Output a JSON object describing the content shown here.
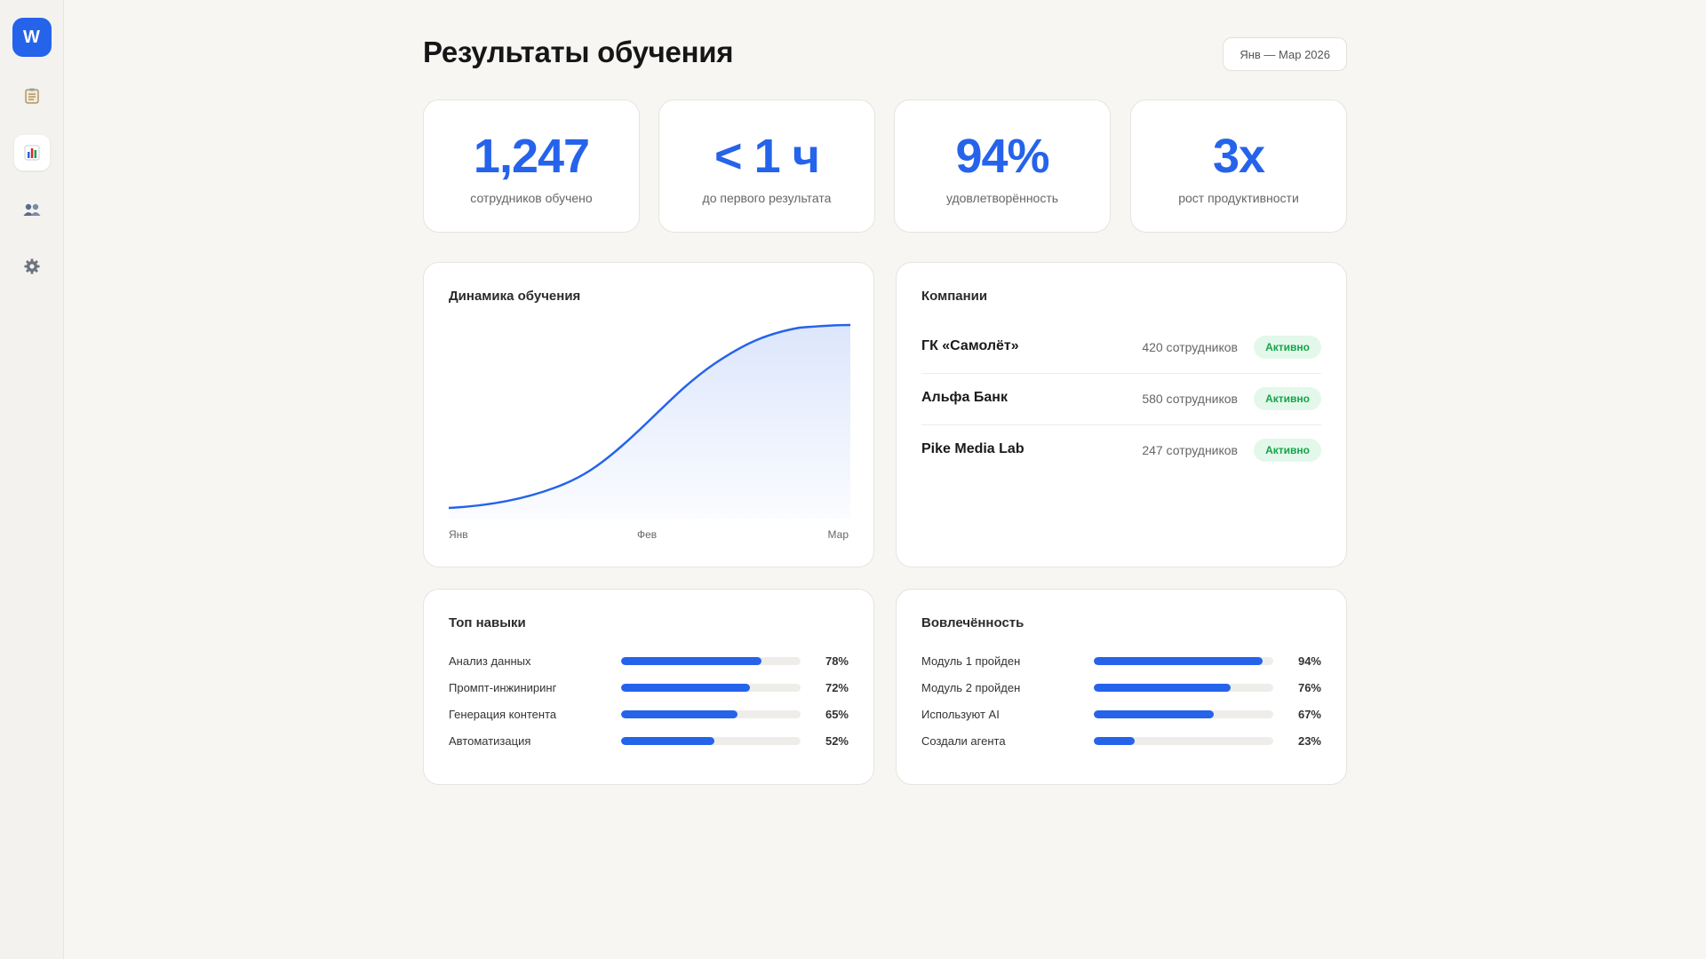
{
  "app": {
    "logo_letter": "W"
  },
  "sidebar": {
    "items": [
      {
        "name": "clipboard",
        "icon": "clipboard-icon",
        "active": false
      },
      {
        "name": "analytics",
        "icon": "bar-chart-icon",
        "active": true
      },
      {
        "name": "users",
        "icon": "users-icon",
        "active": false
      },
      {
        "name": "settings",
        "icon": "gear-icon",
        "active": false
      }
    ]
  },
  "header": {
    "title": "Результаты обучения",
    "date_range": "Янв — Мар 2026"
  },
  "stats": [
    {
      "value": "1,247",
      "label": "сотрудников обучено"
    },
    {
      "value": "< 1 ч",
      "label": "до первого результата"
    },
    {
      "value": "94%",
      "label": "удовлетворённость"
    },
    {
      "value": "3x",
      "label": "рост продуктивности"
    }
  ],
  "dynamics": {
    "title": "Динамика обучения",
    "x_labels": [
      "Янв",
      "Фев",
      "Мар"
    ]
  },
  "companies": {
    "title": "Компании",
    "rows": [
      {
        "name": "ГК «Самолёт»",
        "count": "420 сотрудников",
        "status": "Активно"
      },
      {
        "name": "Альфа Банк",
        "count": "580 сотрудников",
        "status": "Активно"
      },
      {
        "name": "Pike Media Lab",
        "count": "247 сотрудников",
        "status": "Активно"
      }
    ]
  },
  "skills": {
    "title": "Топ навыки",
    "rows": [
      {
        "label": "Анализ данных",
        "value": "78%",
        "percent": 78
      },
      {
        "label": "Промпт-инжиниринг",
        "value": "72%",
        "percent": 72
      },
      {
        "label": "Генерация контента",
        "value": "65%",
        "percent": 65
      },
      {
        "label": "Автоматизация",
        "value": "52%",
        "percent": 52
      }
    ]
  },
  "engagement": {
    "title": "Вовлечённость",
    "rows": [
      {
        "label": "Модуль 1 пройден",
        "value": "94%",
        "percent": 94
      },
      {
        "label": "Модуль 2 пройден",
        "value": "76%",
        "percent": 76
      },
      {
        "label": "Используют AI",
        "value": "67%",
        "percent": 67
      },
      {
        "label": "Создали агента",
        "value": "23%",
        "percent": 23
      }
    ]
  },
  "colors": {
    "accent": "#2563eb",
    "status_active_bg": "#e3f8ea",
    "status_active_text": "#16a34a",
    "background": "#f7f6f3"
  }
}
